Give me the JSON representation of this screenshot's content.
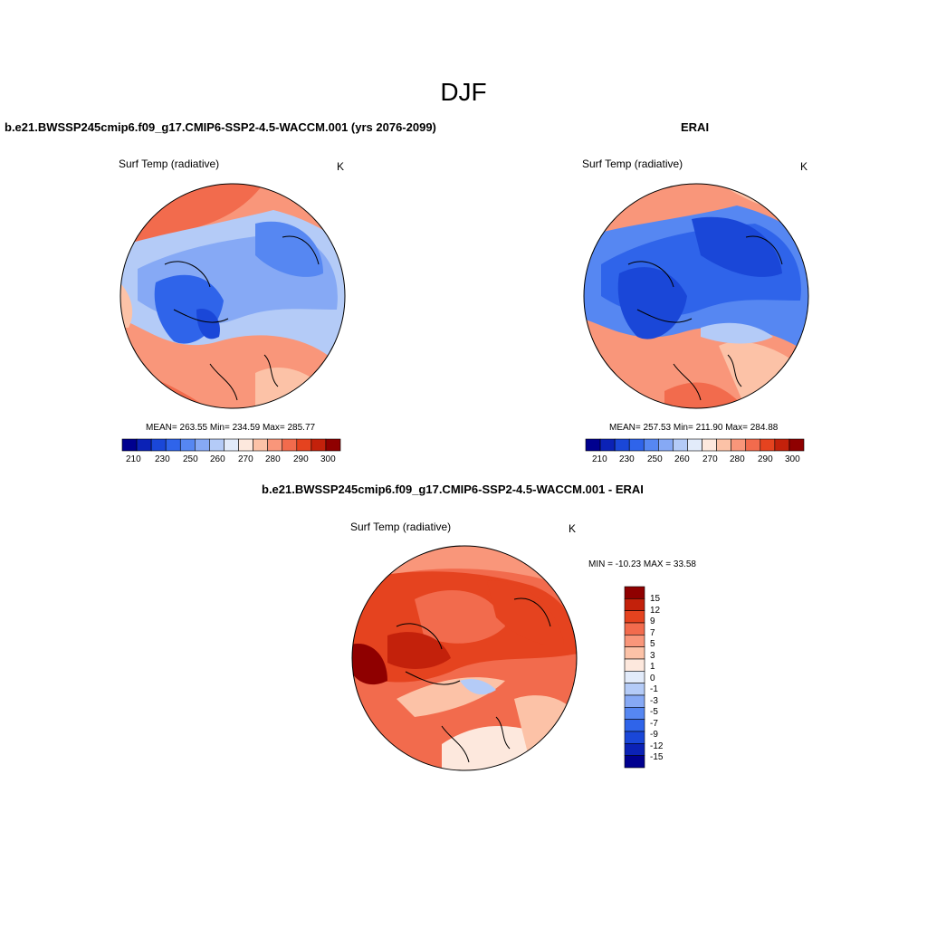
{
  "season": "DJF",
  "panels": [
    {
      "title": "b.e21.BWSSP245cmip6.f09_g17.CMIP6-SSP2-4.5-WACCM.001 (yrs 2076-2099)",
      "variable": "Surf Temp (radiative)",
      "units": "K",
      "stats": "MEAN= 263.55  Min= 234.59  Max= 285.77"
    },
    {
      "title": "ERAI",
      "variable": "Surf Temp (radiative)",
      "units": "K",
      "stats": "MEAN= 257.53  Min= 211.90  Max= 284.88"
    },
    {
      "title": "b.e21.BWSSP245cmip6.f09_g17.CMIP6-SSP2-4.5-WACCM.001 - ERAI",
      "variable": "Surf Temp (radiative)",
      "units": "K",
      "stats": "MIN = -10.23 MAX =  33.58"
    }
  ],
  "abs_colorbar": {
    "colors": [
      "#00008f",
      "#0b22b6",
      "#1a47d8",
      "#2f64ea",
      "#5687f2",
      "#86a9f5",
      "#b4cbf7",
      "#e2ebfa",
      "#fde8dd",
      "#fcc2a7",
      "#f9967a",
      "#f26b4d",
      "#e5431f",
      "#c3210b",
      "#8f0000"
    ],
    "tick_labels": [
      "210",
      "230",
      "250",
      "260",
      "270",
      "280",
      "290",
      "300"
    ]
  },
  "diff_colorbar": {
    "colors": [
      "#8f0000",
      "#c3210b",
      "#e5431f",
      "#f26b4d",
      "#f9967a",
      "#fcc2a7",
      "#fde8dd",
      "#e2ebfa",
      "#b4cbf7",
      "#86a9f5",
      "#5687f2",
      "#2f64ea",
      "#1a47d8",
      "#0b22b6",
      "#00008f"
    ],
    "tick_labels": [
      "15",
      "12",
      "9",
      "7",
      "5",
      "3",
      "1",
      "0",
      "-1",
      "-3",
      "-5",
      "-7",
      "-9",
      "-12",
      "-15"
    ]
  }
}
